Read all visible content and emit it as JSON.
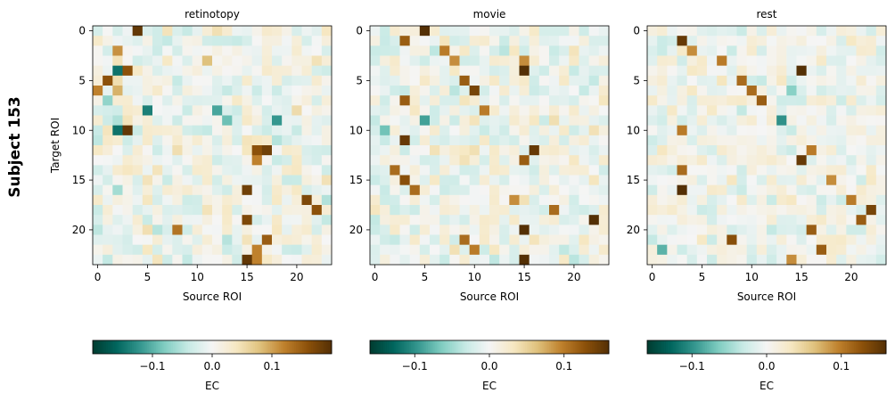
{
  "figure": {
    "suptitle": "Subject 153"
  },
  "colormap": {
    "name": "BrBG_r",
    "stops": [
      "#003c30",
      "#01665e",
      "#35978f",
      "#80cdc1",
      "#c7eae5",
      "#f5f5f5",
      "#f6e8c3",
      "#dfc27d",
      "#bf812d",
      "#8c510a",
      "#543005"
    ]
  },
  "chart_data": [
    {
      "type": "heatmap",
      "title": "retinotopy",
      "xlabel": "Source ROI",
      "ylabel": "Target ROI",
      "n_roi": 24,
      "xticks": [
        0,
        5,
        10,
        15,
        20
      ],
      "yticks": [
        0,
        5,
        10,
        15,
        20
      ],
      "vmin": -0.2,
      "vmax": 0.2,
      "seed": 153,
      "noise_scale": 0.055,
      "strong_cells": [
        [
          0,
          4,
          0.19
        ],
        [
          2,
          2,
          0.11
        ],
        [
          3,
          11,
          0.08
        ],
        [
          4,
          2,
          -0.15
        ],
        [
          4,
          3,
          0.16
        ],
        [
          5,
          1,
          0.16
        ],
        [
          6,
          0,
          0.12
        ],
        [
          6,
          2,
          0.09
        ],
        [
          8,
          5,
          -0.14
        ],
        [
          8,
          12,
          -0.11
        ],
        [
          9,
          18,
          -0.12
        ],
        [
          10,
          2,
          -0.15
        ],
        [
          10,
          3,
          0.19
        ],
        [
          12,
          17,
          0.18
        ],
        [
          12,
          16,
          0.16
        ],
        [
          13,
          16,
          0.12
        ],
        [
          16,
          15,
          0.18
        ],
        [
          17,
          21,
          0.17
        ],
        [
          18,
          22,
          0.16
        ],
        [
          19,
          15,
          0.17
        ],
        [
          20,
          8,
          0.13
        ],
        [
          21,
          17,
          0.15
        ],
        [
          22,
          16,
          0.12
        ],
        [
          23,
          15,
          0.19
        ],
        [
          23,
          16,
          0.12
        ],
        [
          9,
          13,
          -0.09
        ],
        [
          7,
          1,
          -0.07
        ],
        [
          16,
          2,
          -0.06
        ]
      ]
    },
    {
      "type": "heatmap",
      "title": "movie",
      "xlabel": "Source ROI",
      "ylabel": "",
      "n_roi": 24,
      "xticks": [
        0,
        5,
        10,
        15,
        20
      ],
      "yticks": [
        0,
        5,
        10,
        15,
        20
      ],
      "vmin": -0.16,
      "vmax": 0.16,
      "seed": 421,
      "noise_scale": 0.04,
      "strong_cells": [
        [
          0,
          5,
          0.16
        ],
        [
          1,
          3,
          0.12
        ],
        [
          2,
          7,
          0.1
        ],
        [
          3,
          8,
          0.09
        ],
        [
          4,
          15,
          0.16
        ],
        [
          5,
          9,
          0.12
        ],
        [
          6,
          10,
          0.14
        ],
        [
          7,
          3,
          0.12
        ],
        [
          8,
          11,
          0.1
        ],
        [
          9,
          5,
          -0.09
        ],
        [
          11,
          3,
          0.15
        ],
        [
          12,
          16,
          0.15
        ],
        [
          13,
          15,
          0.12
        ],
        [
          14,
          2,
          0.11
        ],
        [
          15,
          3,
          0.13
        ],
        [
          16,
          4,
          0.11
        ],
        [
          17,
          14,
          0.09
        ],
        [
          18,
          18,
          0.11
        ],
        [
          19,
          22,
          0.16
        ],
        [
          20,
          15,
          0.16
        ],
        [
          21,
          9,
          0.11
        ],
        [
          22,
          10,
          0.1
        ],
        [
          23,
          15,
          0.16
        ],
        [
          3,
          15,
          0.09
        ],
        [
          10,
          1,
          -0.07
        ]
      ]
    },
    {
      "type": "heatmap",
      "title": "rest",
      "xlabel": "Source ROI",
      "ylabel": "",
      "n_roi": 24,
      "xticks": [
        0,
        5,
        10,
        15,
        20
      ],
      "yticks": [
        0,
        5,
        10,
        15,
        20
      ],
      "vmin": -0.16,
      "vmax": 0.16,
      "seed": 977,
      "noise_scale": 0.035,
      "strong_cells": [
        [
          1,
          3,
          0.15
        ],
        [
          2,
          4,
          0.09
        ],
        [
          3,
          7,
          0.1
        ],
        [
          4,
          15,
          0.16
        ],
        [
          5,
          9,
          0.11
        ],
        [
          6,
          10,
          0.11
        ],
        [
          7,
          11,
          0.12
        ],
        [
          9,
          13,
          -0.1
        ],
        [
          10,
          3,
          0.1
        ],
        [
          12,
          16,
          0.1
        ],
        [
          13,
          15,
          0.15
        ],
        [
          14,
          3,
          0.11
        ],
        [
          15,
          18,
          0.09
        ],
        [
          16,
          3,
          0.16
        ],
        [
          17,
          20,
          0.1
        ],
        [
          18,
          22,
          0.14
        ],
        [
          19,
          21,
          0.12
        ],
        [
          20,
          16,
          0.12
        ],
        [
          21,
          8,
          0.13
        ],
        [
          22,
          17,
          0.12
        ],
        [
          23,
          14,
          0.09
        ],
        [
          22,
          1,
          -0.08
        ],
        [
          6,
          14,
          -0.06
        ]
      ]
    }
  ],
  "colorbars": [
    {
      "label": "EC",
      "min": -0.2,
      "max": 0.2,
      "ticks": [
        -0.1,
        0.0,
        0.1
      ],
      "tick_labels": [
        "−0.1",
        "0.0",
        "0.1"
      ]
    },
    {
      "label": "EC",
      "min": -0.16,
      "max": 0.16,
      "ticks": [
        -0.1,
        0.0,
        0.1
      ],
      "tick_labels": [
        "−0.1",
        "0.0",
        "0.1"
      ]
    },
    {
      "label": "EC",
      "min": -0.16,
      "max": 0.16,
      "ticks": [
        -0.1,
        0.0,
        0.1
      ],
      "tick_labels": [
        "−0.1",
        "0.0",
        "0.1"
      ]
    }
  ]
}
